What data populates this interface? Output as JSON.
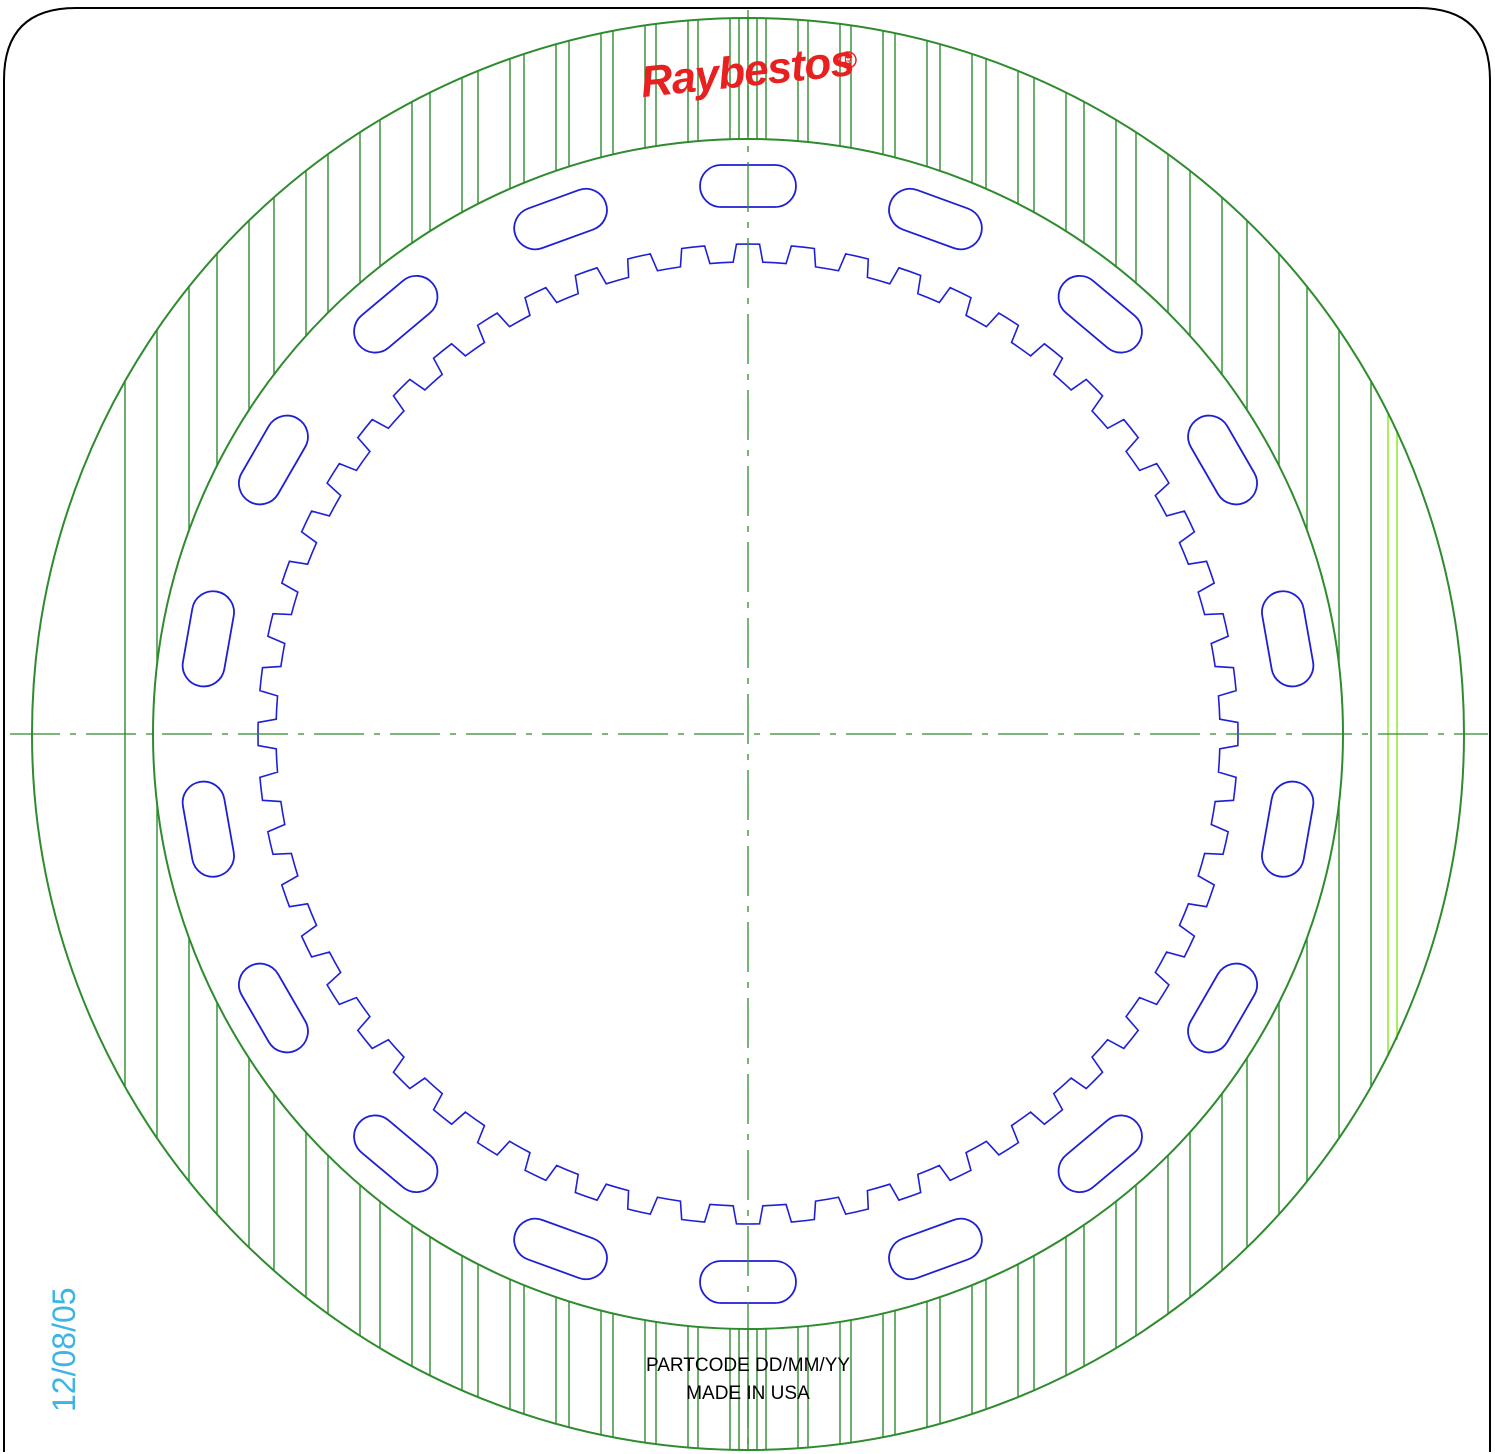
{
  "drawing": {
    "logo_text": "Raybestos",
    "registered_mark": "R",
    "part_code_line": "PARTCODE DD/MM/YY",
    "origin_line": "MADE IN USA",
    "date_stamp": "12/08/05",
    "colors": {
      "friction_material": "#2e8b2e",
      "steel_core": "#1f1fd6",
      "centerline": "#2e8b2e",
      "highlight_groove": "#8fe82a",
      "logo": "#e82020",
      "date_stamp": "#3cb4e6",
      "frame": "#000000",
      "text": "#000000"
    },
    "features": {
      "spline_teeth": 56,
      "oil_slots": 18
    }
  }
}
